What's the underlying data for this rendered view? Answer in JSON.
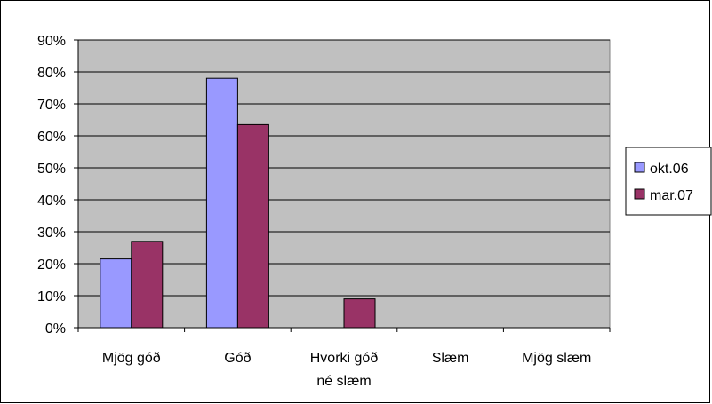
{
  "chart_data": {
    "type": "bar",
    "title": "",
    "xlabel": "",
    "ylabel": "",
    "categories": [
      "Mjög góð",
      "Góð",
      "Hvorki góð né slæm",
      "Slæm",
      "Mjög slæm"
    ],
    "category_lines": [
      [
        "Mjög góð"
      ],
      [
        "Góð"
      ],
      [
        "Hvorki góð",
        "né slæm"
      ],
      [
        "Slæm"
      ],
      [
        "Mjög slæm"
      ]
    ],
    "series": [
      {
        "name": "okt.06",
        "values": [
          21.5,
          78,
          0,
          0,
          0
        ],
        "color": "#9999ff"
      },
      {
        "name": "mar.07",
        "values": [
          27,
          63.5,
          9,
          0,
          0
        ],
        "color": "#993366"
      }
    ],
    "ylim": [
      0,
      90
    ],
    "yticks": [
      0,
      10,
      20,
      30,
      40,
      50,
      60,
      70,
      80,
      90
    ],
    "ytick_labels": [
      "0%",
      "10%",
      "20%",
      "30%",
      "40%",
      "50%",
      "60%",
      "70%",
      "80%",
      "90%"
    ],
    "grid": true,
    "plot_background": "#c0c0c0",
    "legend_position": "right"
  }
}
